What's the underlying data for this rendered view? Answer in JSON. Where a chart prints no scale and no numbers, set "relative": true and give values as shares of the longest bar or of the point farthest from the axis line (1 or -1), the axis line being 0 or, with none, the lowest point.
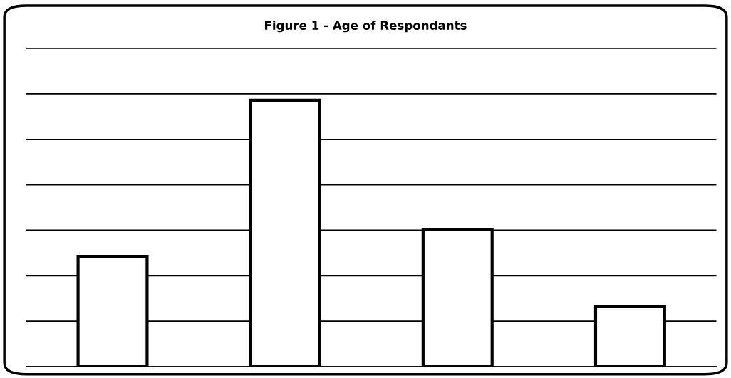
{
  "chart_data": {
    "type": "bar",
    "title": "Figure 1 - Age of Respondants",
    "categories": [
      null,
      null,
      null,
      null
    ],
    "values": [
      0.414,
      1,
      0.516,
      0.227
    ],
    "color": "#ffffff",
    "relative": true,
    "grid": "y"
  }
}
